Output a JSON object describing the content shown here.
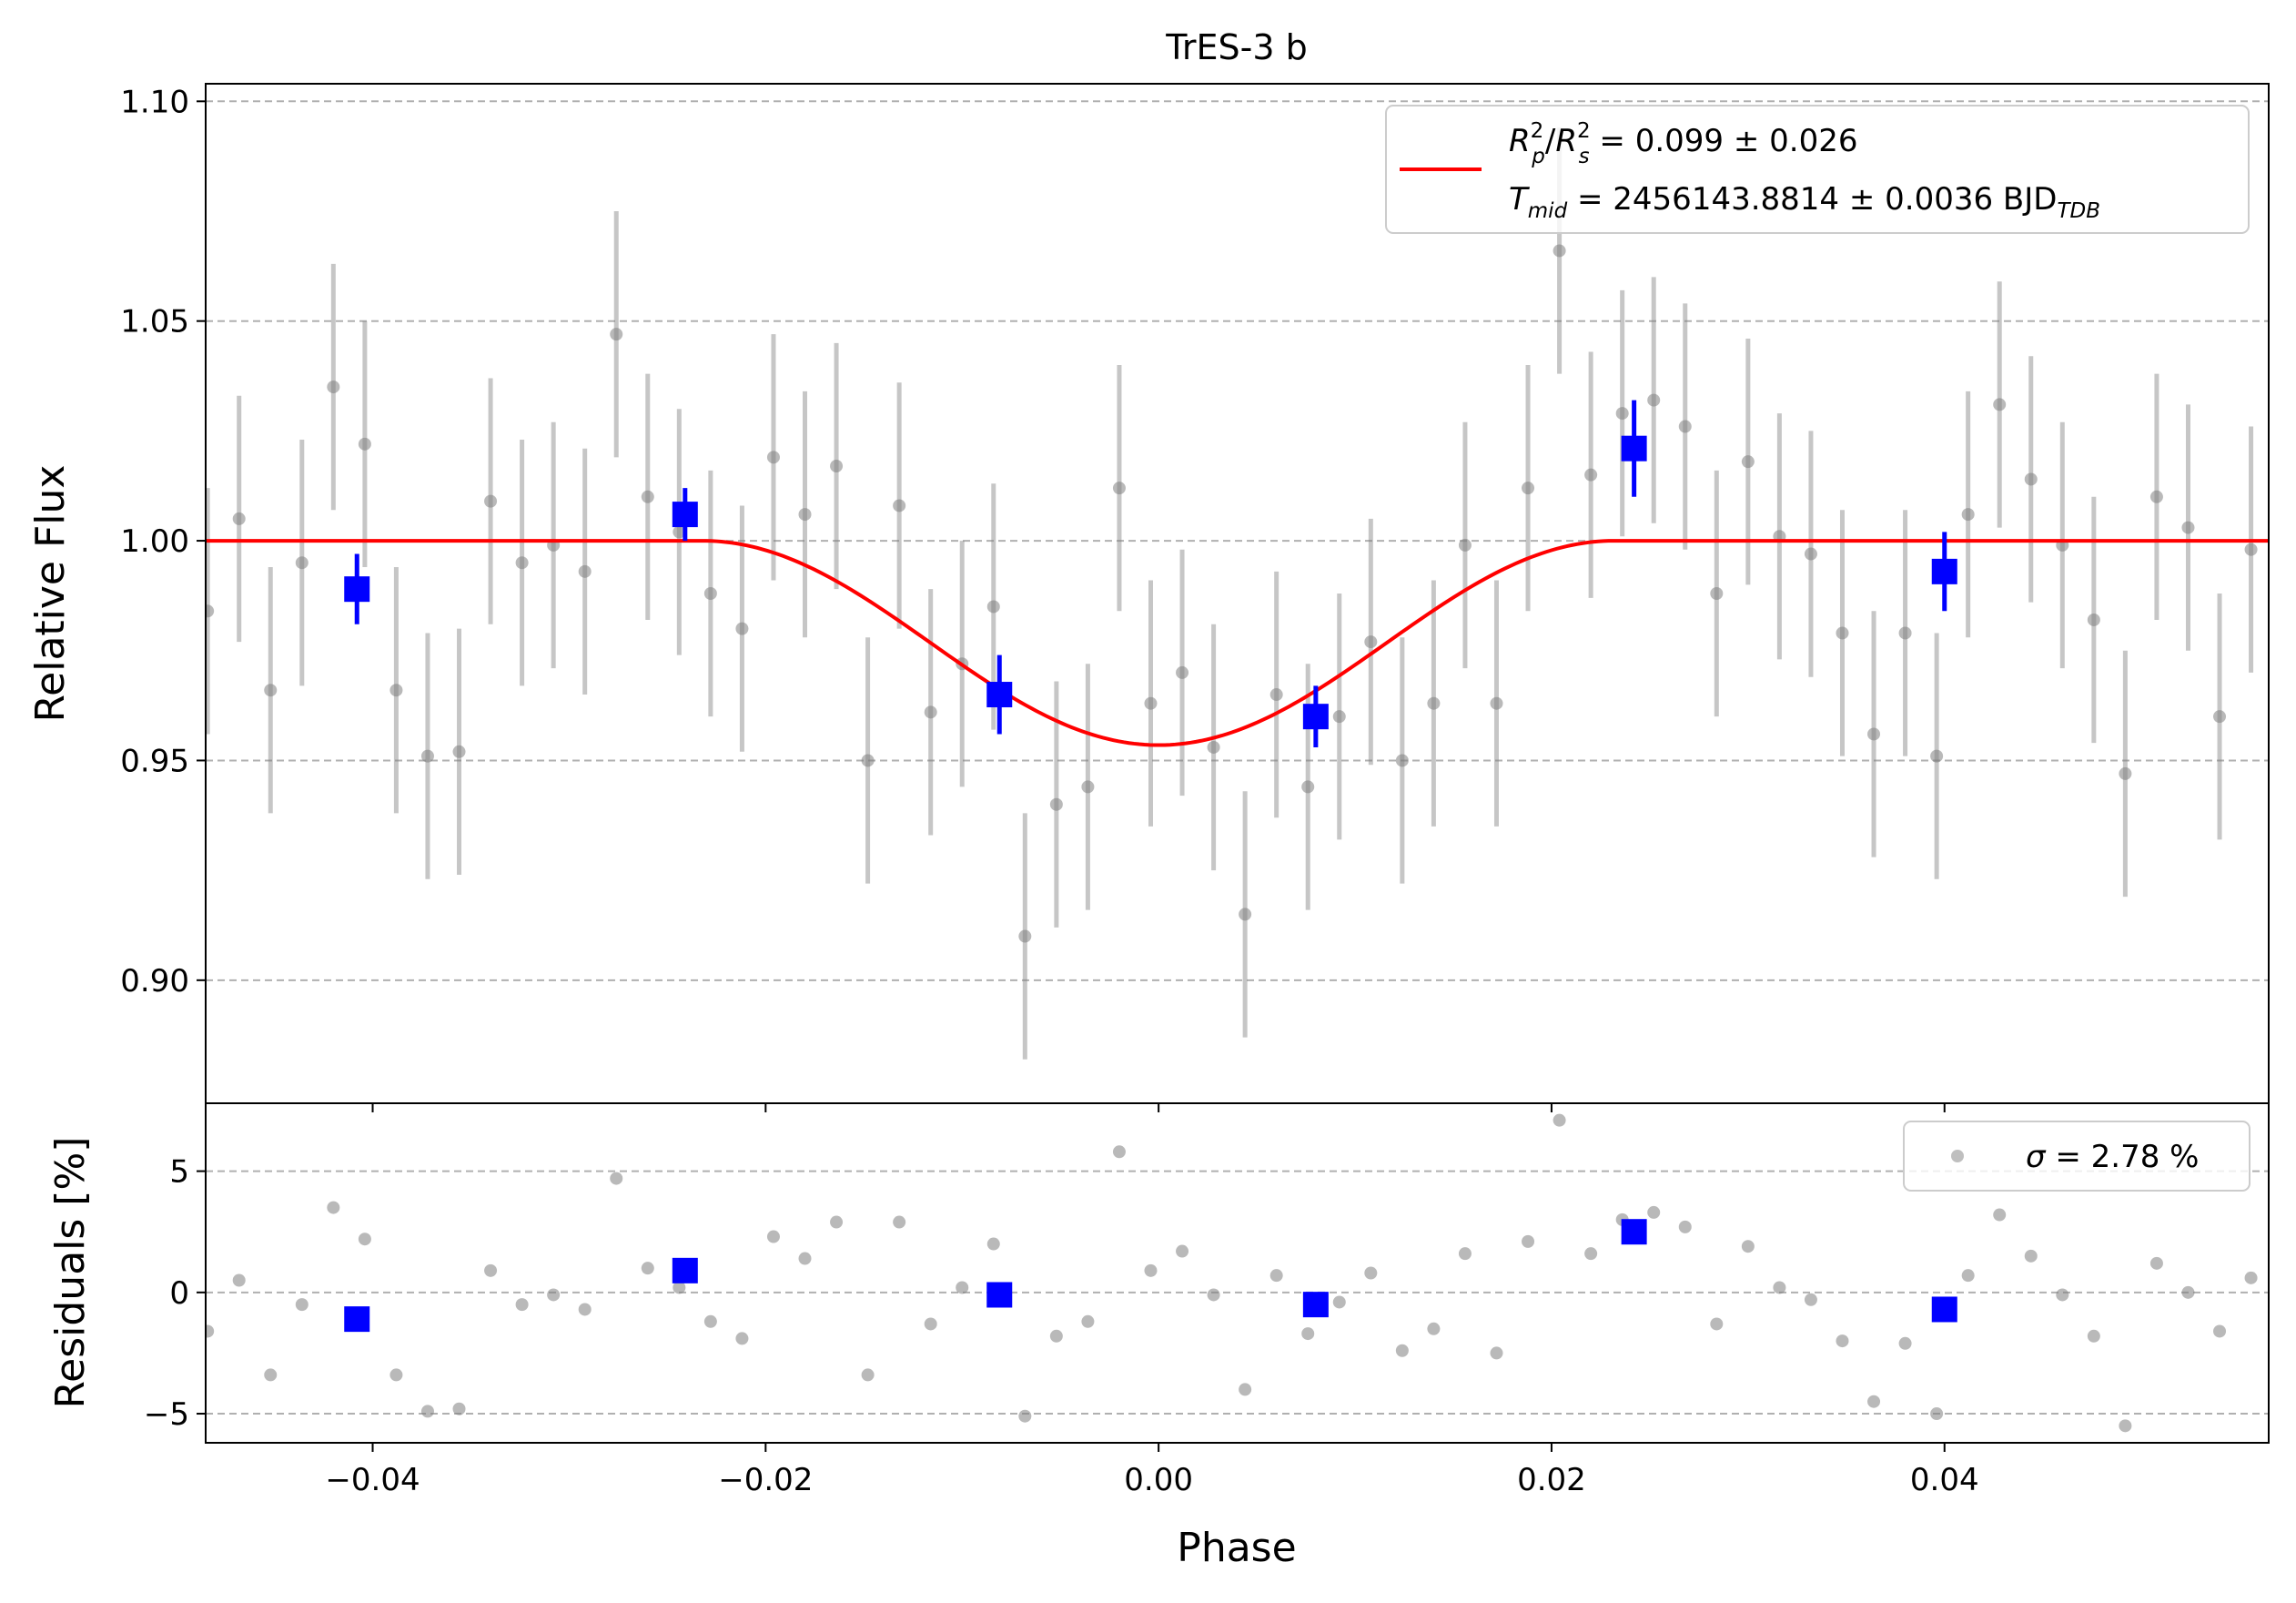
{
  "chart_data": [
    {
      "panel": "main",
      "type": "scatter",
      "title": "TrES-3 b",
      "xlabel": "",
      "ylabel": "Relative Flux",
      "xlim": [
        -0.0485,
        0.0565
      ],
      "ylim": [
        0.872,
        1.104
      ],
      "x_ticks": [
        "−0.04",
        "−0.02",
        "0.00",
        "0.02",
        "0.04"
      ],
      "y_ticks": [
        "0.90",
        "0.95",
        "1.00",
        "1.05",
        "1.10"
      ],
      "grid": "horizontal dashed",
      "legend": {
        "placement": "top-right",
        "rp_rs_text": " = 0.099 ± 0.026",
        "tmid_text": " = 2456143.8814 ± 0.0036 BJD",
        "tmid_subscript": "TDB"
      },
      "series": [
        {
          "name": "",
          "kind": "raw",
          "color": "#808080",
          "x": [
            -0.0484,
            -0.0468,
            -0.0452,
            -0.0436,
            -0.042,
            -0.0404,
            -0.0388,
            -0.0372,
            -0.0356,
            -0.034,
            -0.0324,
            -0.0308,
            -0.0292,
            -0.0276,
            -0.026,
            -0.0244,
            -0.0228,
            -0.0212,
            -0.0196,
            -0.018,
            -0.0164,
            -0.0148,
            -0.0132,
            -0.0116,
            -0.01,
            -0.0084,
            -0.0068,
            -0.0052,
            -0.0036,
            -0.002,
            -0.0004,
            0.0012,
            0.0028,
            0.0044,
            0.006,
            0.0076,
            0.0092,
            0.0108,
            0.0124,
            0.014,
            0.0156,
            0.0172,
            0.0188,
            0.0204,
            0.022,
            0.0236,
            0.0252,
            0.0268,
            0.0284,
            0.03,
            0.0316,
            0.0332,
            0.0348,
            0.0364,
            0.038,
            0.0396,
            0.0412,
            0.0428,
            0.0444,
            0.046,
            0.0476,
            0.0492,
            0.0508,
            0.0524,
            0.054,
            0.0556
          ],
          "y": [
            0.984,
            1.005,
            0.966,
            0.995,
            1.035,
            1.022,
            0.966,
            0.951,
            0.952,
            1.009,
            0.995,
            0.999,
            0.993,
            1.047,
            1.01,
            1.002,
            0.988,
            0.98,
            1.019,
            1.006,
            1.017,
            0.95,
            1.008,
            0.961,
            0.972,
            0.985,
            0.91,
            0.94,
            0.944,
            1.012,
            0.963,
            0.97,
            0.953,
            0.915,
            0.965,
            0.944,
            0.96,
            0.977,
            0.95,
            0.963,
            0.999,
            0.963,
            1.012,
            1.066,
            1.015,
            1.029,
            1.032,
            1.026,
            0.988,
            1.018,
            1.001,
            0.997,
            0.979,
            0.956,
            0.979,
            0.951,
            1.006,
            1.031,
            1.014,
            0.999,
            0.982,
            0.947,
            1.01,
            1.003,
            0.96,
            0.998
          ],
          "yerr": 0.028
        },
        {
          "name": "",
          "kind": "binned",
          "color": "#0000ff",
          "x": [
            -0.0408,
            -0.0241,
            -0.0081,
            0.008,
            0.0242,
            0.04
          ],
          "y": [
            0.989,
            1.006,
            0.965,
            0.96,
            1.021,
            0.993
          ],
          "yerr": [
            0.008,
            0.006,
            0.009,
            0.007,
            0.011,
            0.009
          ]
        },
        {
          "name": "",
          "kind": "model",
          "color": "#ff0000",
          "depth": 0.0465,
          "t1": 0.0232
        }
      ]
    },
    {
      "panel": "residuals",
      "type": "scatter",
      "xlabel": "Phase",
      "ylabel": "Residuals [%]",
      "xlim": [
        -0.0485,
        0.0565
      ],
      "ylim": [
        -6.2,
        7.8
      ],
      "x_ticks": [
        "−0.04",
        "−0.02",
        "0.00",
        "0.02",
        "0.04"
      ],
      "y_ticks": [
        "−5",
        "0",
        "5"
      ],
      "legend": {
        "placement": "top-right",
        "text": " = 2.78 %"
      },
      "series": [
        {
          "name": "",
          "kind": "raw",
          "color": "#808080",
          "x": [
            -0.0484,
            -0.0468,
            -0.0452,
            -0.0436,
            -0.042,
            -0.0404,
            -0.0388,
            -0.0372,
            -0.0356,
            -0.034,
            -0.0324,
            -0.0308,
            -0.0292,
            -0.0276,
            -0.026,
            -0.0244,
            -0.0228,
            -0.0212,
            -0.0196,
            -0.018,
            -0.0164,
            -0.0148,
            -0.0132,
            -0.0116,
            -0.01,
            -0.0084,
            -0.0068,
            -0.0052,
            -0.0036,
            -0.002,
            -0.0004,
            0.0012,
            0.0028,
            0.0044,
            0.006,
            0.0076,
            0.0092,
            0.0108,
            0.0124,
            0.014,
            0.0156,
            0.0172,
            0.0188,
            0.0204,
            0.022,
            0.0236,
            0.0252,
            0.0268,
            0.0284,
            0.03,
            0.0316,
            0.0332,
            0.0348,
            0.0364,
            0.038,
            0.0396,
            0.0412,
            0.0428,
            0.0444,
            0.046,
            0.0476,
            0.0492,
            0.0508,
            0.0524,
            0.054,
            0.0556
          ],
          "y": [
            -1.6,
            0.5,
            -3.4,
            -0.5,
            3.5,
            2.2,
            -3.4,
            -4.9,
            -4.8,
            0.9,
            -0.5,
            -0.1,
            -0.7,
            4.7,
            1.0,
            0.2,
            -1.2,
            -1.9,
            2.3,
            1.4,
            2.9,
            -3.4,
            2.9,
            -1.3,
            0.2,
            2.0,
            -5.1,
            -1.8,
            -1.2,
            5.8,
            0.9,
            1.7,
            -0.1,
            -4.0,
            0.7,
            -1.7,
            -0.4,
            0.8,
            -2.4,
            -1.5,
            1.6,
            -2.5,
            2.1,
            7.1,
            1.6,
            3.0,
            3.3,
            2.7,
            -1.3,
            1.9,
            0.2,
            -0.3,
            -2.0,
            -4.5,
            -2.1,
            -5.0,
            0.7,
            3.2,
            1.5,
            -0.1,
            -1.8,
            -5.5,
            1.2,
            0.0,
            -1.6,
            0.6
          ],
          "showInPlot": 66
        },
        {
          "name": "",
          "kind": "binned",
          "color": "#0000ff",
          "x": [
            -0.0408,
            -0.0241,
            -0.0081,
            0.008,
            0.0242,
            0.04
          ],
          "y": [
            -1.1,
            0.9,
            -0.1,
            -0.5,
            2.5,
            -0.7
          ]
        }
      ]
    }
  ]
}
